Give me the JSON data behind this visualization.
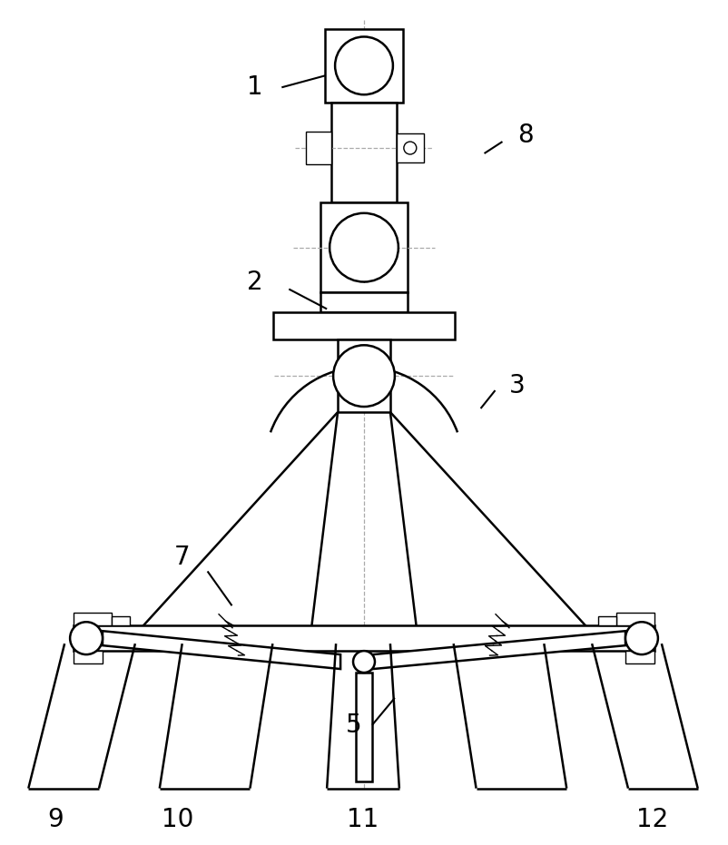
{
  "bg_color": "#ffffff",
  "line_color": "#000000",
  "dash_color": "#aaaaaa",
  "fig_width": 8.03,
  "fig_height": 9.31,
  "lw": 1.8,
  "lw_thin": 1.0,
  "lw_dash": 0.9
}
